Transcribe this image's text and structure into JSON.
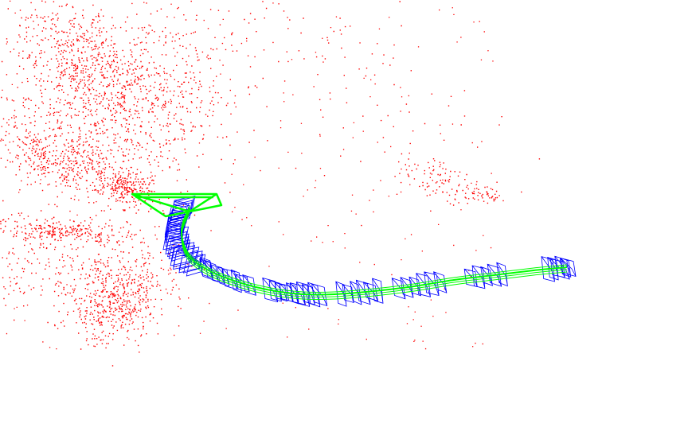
{
  "viewer": {
    "background": "#ffffff"
  },
  "map_points": {
    "color": "#ff0000"
  },
  "keyframes": {
    "color": "#0000ff"
  },
  "current_camera": {
    "color": "#00ff00"
  },
  "trajectory": {
    "color": "#00ff00"
  }
}
